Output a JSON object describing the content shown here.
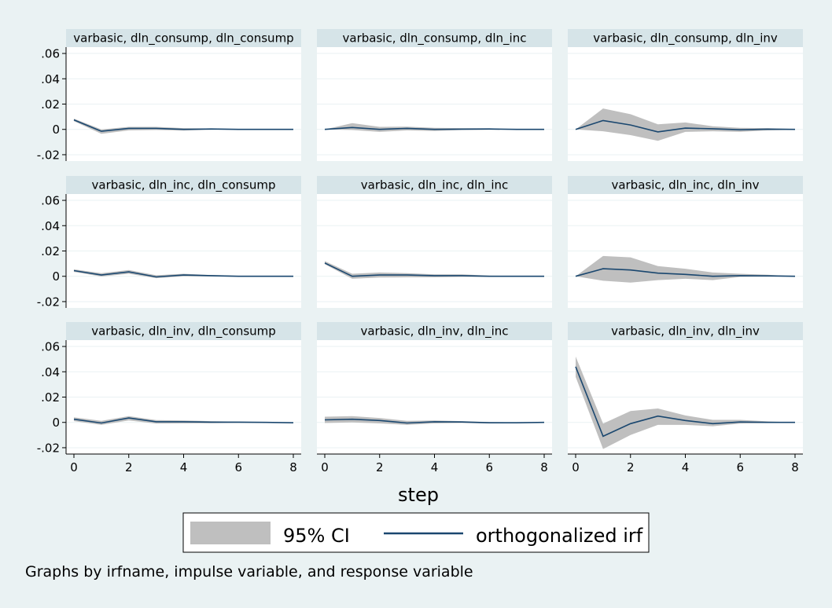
{
  "chart_data": {
    "type": "area",
    "layout": "3x3 small multiples",
    "xlabel": "step",
    "ylabel": "",
    "x": [
      0,
      1,
      2,
      3,
      4,
      5,
      6,
      7,
      8
    ],
    "xlim": [
      0,
      8
    ],
    "ylim": [
      -0.025,
      0.065
    ],
    "x_ticks": [
      0,
      2,
      4,
      6,
      8
    ],
    "x_tick_labels": [
      "0",
      "2",
      "4",
      "6",
      "8"
    ],
    "y_ticks": [
      -0.02,
      0,
      0.02,
      0.04,
      0.06
    ],
    "y_tick_labels": [
      "-.02",
      "0",
      ".02",
      ".04",
      ".06"
    ],
    "grid": true,
    "colors": {
      "background": "#eaf2f3",
      "plot_area": "#ffffff",
      "panel_header": "#d6e4e8",
      "ci_band": "#bfbfbf",
      "irf_line": "#1a476f"
    },
    "legend": {
      "position": "bottom",
      "items": [
        {
          "label": "95% CI",
          "kind": "area",
          "color": "#bfbfbf"
        },
        {
          "label": "orthogonalized irf",
          "kind": "line",
          "color": "#1a476f"
        }
      ]
    },
    "note": "Graphs by irfname, impulse variable, and response variable",
    "panels": [
      {
        "title": "varbasic, dln_consump, dln_consump",
        "irf": [
          0.0075,
          -0.0015,
          0.0008,
          0.0008,
          0.0,
          0.0003,
          0.0,
          0.0,
          0.0
        ],
        "lower": [
          0.0065,
          -0.0035,
          -0.0008,
          -0.0005,
          -0.001,
          -0.0002,
          -0.0002,
          -0.0001,
          0.0
        ],
        "upper": [
          0.0085,
          0.0,
          0.002,
          0.002,
          0.001,
          0.0007,
          0.0003,
          0.0001,
          0.0
        ]
      },
      {
        "title": "varbasic, dln_consump, dln_inc",
        "irf": [
          0.0,
          0.0015,
          0.0,
          0.0008,
          0.0,
          0.0002,
          0.0003,
          0.0,
          0.0
        ],
        "lower": [
          0.0,
          -0.0005,
          -0.002,
          -0.0008,
          -0.0012,
          -0.0005,
          -0.0003,
          -0.0002,
          0.0
        ],
        "upper": [
          0.0,
          0.005,
          0.002,
          0.0022,
          0.0012,
          0.001,
          0.0008,
          0.0003,
          0.0
        ]
      },
      {
        "title": "varbasic, dln_consump, dln_inv",
        "irf": [
          0.0,
          0.007,
          0.0035,
          -0.002,
          0.001,
          0.0005,
          -0.0003,
          0.0002,
          0.0
        ],
        "lower": [
          0.0,
          -0.0015,
          -0.0045,
          -0.009,
          -0.002,
          -0.0015,
          -0.002,
          -0.0008,
          -0.0003
        ],
        "upper": [
          0.0,
          0.0165,
          0.012,
          0.004,
          0.0055,
          0.0025,
          0.0012,
          0.001,
          0.0003
        ]
      },
      {
        "title": "varbasic, dln_inc, dln_consump",
        "irf": [
          0.0045,
          0.001,
          0.0035,
          -0.0005,
          0.001,
          0.0005,
          0.0,
          0.0,
          0.0
        ],
        "lower": [
          0.0035,
          -0.0002,
          0.002,
          -0.0015,
          0.0,
          -0.0002,
          -0.0003,
          -0.0002,
          0.0
        ],
        "upper": [
          0.0055,
          0.0025,
          0.005,
          0.0008,
          0.002,
          0.001,
          0.0004,
          0.0002,
          0.0
        ]
      },
      {
        "title": "varbasic, dln_inc, dln_inc",
        "irf": [
          0.0105,
          0.0,
          0.001,
          0.001,
          0.0005,
          0.0005,
          0.0,
          0.0,
          0.0
        ],
        "lower": [
          0.0095,
          -0.002,
          -0.001,
          -0.0008,
          -0.0008,
          -0.0005,
          -0.0005,
          -0.0002,
          0.0
        ],
        "upper": [
          0.012,
          0.002,
          0.003,
          0.0025,
          0.0015,
          0.0015,
          0.0005,
          0.0003,
          0.0
        ]
      },
      {
        "title": "varbasic, dln_inc, dln_inv",
        "irf": [
          0.0,
          0.006,
          0.005,
          0.0025,
          0.0015,
          0.0,
          0.0005,
          0.0003,
          0.0
        ],
        "lower": [
          0.0,
          -0.0035,
          -0.005,
          -0.003,
          -0.002,
          -0.003,
          -0.0005,
          -0.0003,
          0.0
        ],
        "upper": [
          0.0,
          0.016,
          0.015,
          0.008,
          0.006,
          0.003,
          0.002,
          0.0012,
          0.0
        ]
      },
      {
        "title": "varbasic, dln_inv, dln_consump",
        "irf": [
          0.0025,
          -0.0005,
          0.0035,
          0.0005,
          0.0005,
          0.0002,
          0.0002,
          0.0,
          -0.0003
        ],
        "lower": [
          0.001,
          -0.002,
          0.0015,
          -0.001,
          -0.0008,
          -0.0006,
          -0.0004,
          -0.0003,
          -0.0005
        ],
        "upper": [
          0.004,
          0.0012,
          0.005,
          0.0018,
          0.0015,
          0.001,
          0.0006,
          0.0002,
          0.0
        ]
      },
      {
        "title": "varbasic, dln_inv, dln_inc",
        "irf": [
          0.002,
          0.0025,
          0.0015,
          -0.0005,
          0.0005,
          0.0003,
          -0.0003,
          -0.0003,
          0.0
        ],
        "lower": [
          -0.0005,
          0.0,
          -0.0008,
          -0.002,
          -0.0008,
          -0.0005,
          -0.0008,
          -0.0006,
          0.0
        ],
        "upper": [
          0.0045,
          0.005,
          0.0035,
          0.0012,
          0.0015,
          0.001,
          0.0003,
          0.0,
          0.0
        ]
      },
      {
        "title": "varbasic, dln_inv, dln_inv",
        "irf": [
          0.044,
          -0.011,
          -0.001,
          0.005,
          0.0015,
          -0.001,
          0.0003,
          0.0,
          0.0
        ],
        "lower": [
          0.036,
          -0.021,
          -0.01,
          -0.002,
          -0.002,
          -0.003,
          -0.001,
          -0.0005,
          0.0
        ],
        "upper": [
          0.052,
          -0.001,
          0.009,
          0.011,
          0.0055,
          0.002,
          0.002,
          0.0008,
          0.0
        ]
      }
    ]
  }
}
